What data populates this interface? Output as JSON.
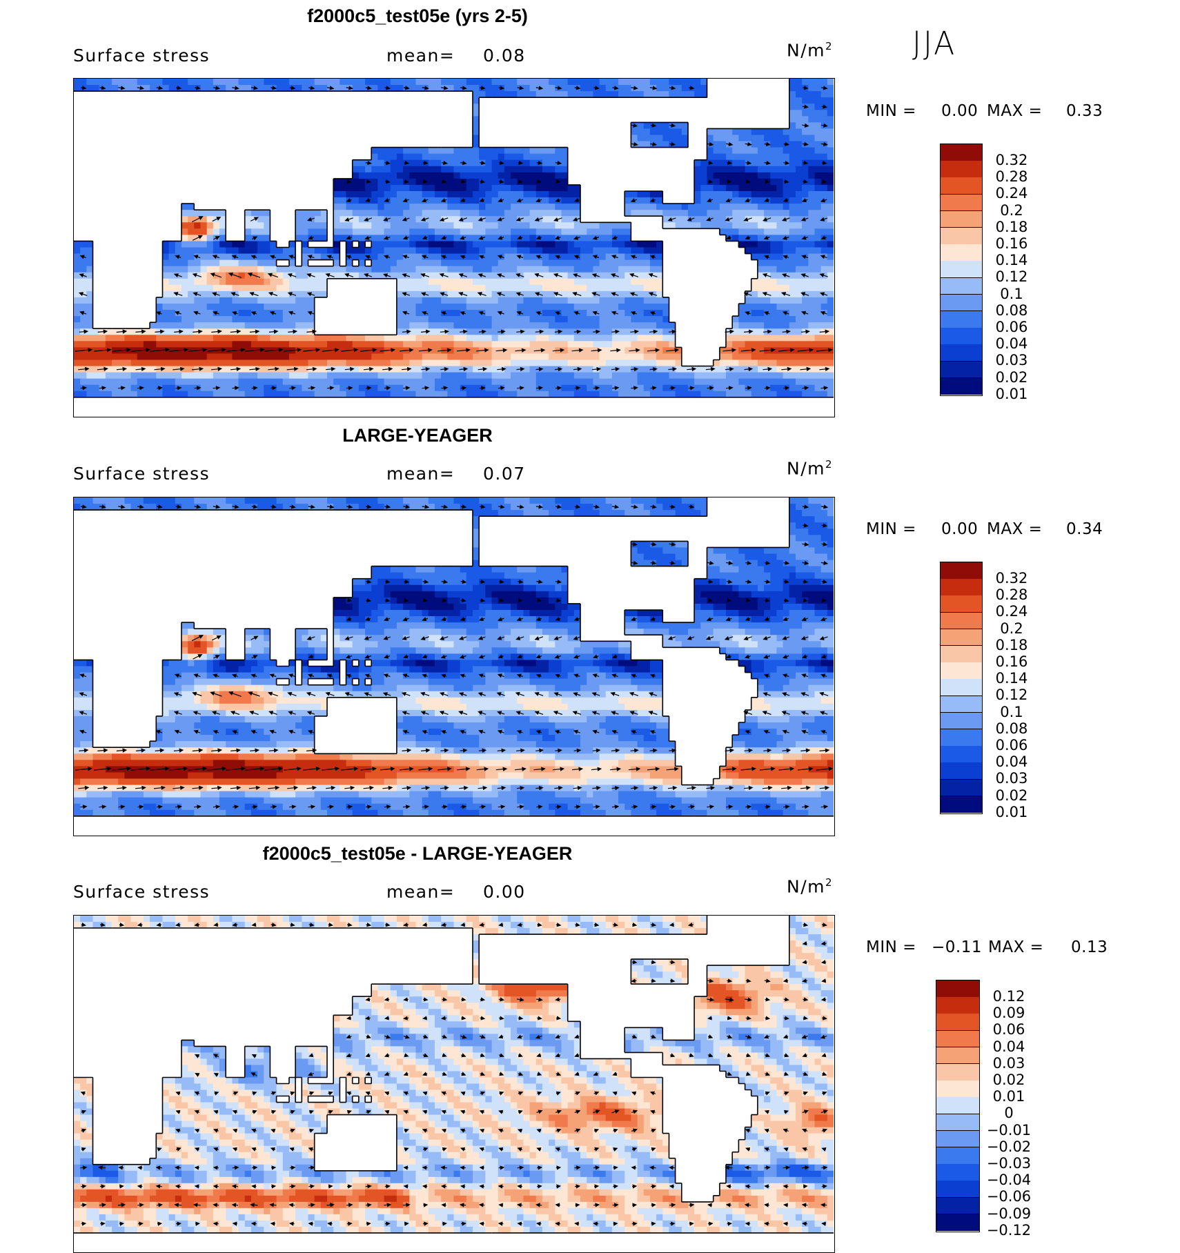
{
  "season": "JJA",
  "colors": {
    "seq": [
      "#000c7d",
      "#0322a6",
      "#0a3fd1",
      "#1b5ae6",
      "#3a79ee",
      "#6a9af2",
      "#97bbf6",
      "#cfe2fa",
      "#fde6d3",
      "#f9c7a8",
      "#f5a276",
      "#f07a4b",
      "#e35524",
      "#c52d0e",
      "#8f0d06"
    ],
    "div": [
      "#000c7d",
      "#0322a6",
      "#0a3fd1",
      "#1b5ae6",
      "#3a79ee",
      "#6a9af2",
      "#97bbf6",
      "#cfe2fa",
      "#fde6d3",
      "#f9c7a8",
      "#f5a276",
      "#f07a4b",
      "#e35524",
      "#c52d0e",
      "#8f0d06"
    ],
    "land": "#ffffff",
    "coast": "#000000"
  },
  "panels": [
    {
      "title": "f2000c5_test05e (yrs 2-5)",
      "variable": "Surface stress",
      "mean_label": "mean=",
      "mean_value": "0.08",
      "units": "N/m",
      "units_sup": "2",
      "min_label": "MIN =",
      "min_value": "0.00",
      "max_label": "MAX =",
      "max_value": "0.33",
      "colorbar_labels": [
        "0.32",
        "0.28",
        "0.24",
        "0.2",
        "0.18",
        "0.16",
        "0.14",
        "0.12",
        "0.1",
        "0.08",
        "0.06",
        "0.04",
        "0.03",
        "0.02",
        "0.01"
      ],
      "mode": "field"
    },
    {
      "title": "LARGE-YEAGER",
      "variable": "Surface stress",
      "mean_label": "mean=",
      "mean_value": "0.07",
      "units": "N/m",
      "units_sup": "2",
      "min_label": "MIN =",
      "min_value": "0.00",
      "max_label": "MAX =",
      "max_value": "0.34",
      "colorbar_labels": [
        "0.32",
        "0.28",
        "0.24",
        "0.2",
        "0.18",
        "0.16",
        "0.14",
        "0.12",
        "0.1",
        "0.08",
        "0.06",
        "0.04",
        "0.03",
        "0.02",
        "0.01"
      ],
      "mode": "field"
    },
    {
      "title": "f2000c5_test05e - LARGE-YEAGER",
      "variable": "Surface stress",
      "mean_label": "mean=",
      "mean_value": "0.00",
      "units": "N/m",
      "units_sup": "2",
      "min_label": "MIN =",
      "min_value": "−0.11",
      "max_label": "MAX =",
      "max_value": "0.13",
      "colorbar_labels": [
        "0.12",
        "0.09",
        "0.06",
        "0.04",
        "0.03",
        "0.02",
        "0.01",
        "0",
        "−0.01",
        "−0.02",
        "−0.03",
        "−0.04",
        "−0.06",
        "−0.09",
        "−0.12"
      ],
      "mode": "diff"
    }
  ]
}
